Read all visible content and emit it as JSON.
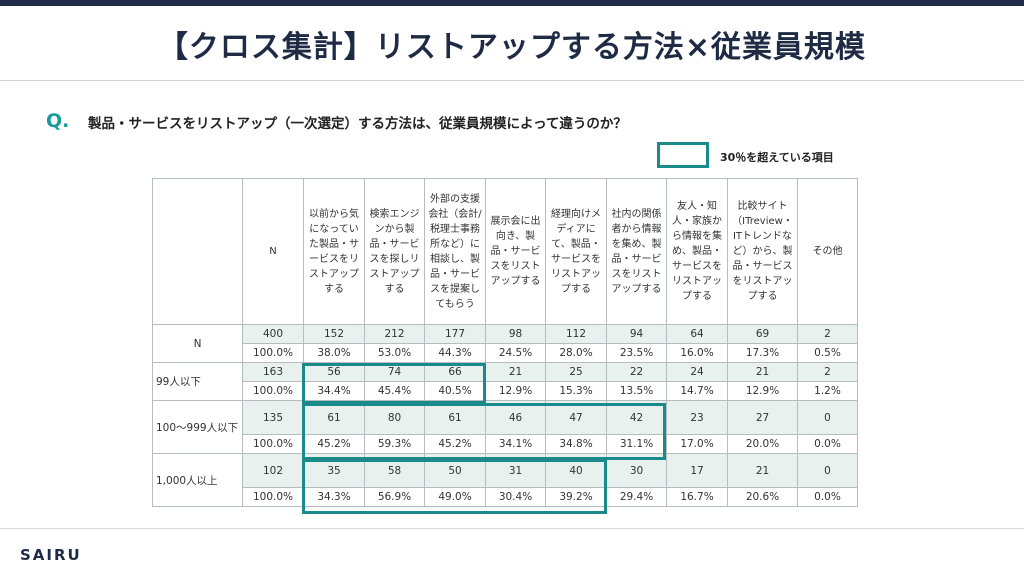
{
  "title": "【クロス集計】リストアップする方法×従業員規模",
  "question": {
    "mark": "Q.",
    "text": "製品・サービスをリストアップ（一次選定）する方法は、従業員規模によって違うのか？"
  },
  "legend": {
    "label": "30％を超えている項目",
    "color": "#1a8a8a"
  },
  "table": {
    "headers": [
      "",
      "N",
      "以前から気になっていた製品・サービスをリストアップする",
      "検索エンジンから製品・サービスを探しリストアップする",
      "外部の支援会社（会計/税理士事務所など）に相談し、製品・サービスを提案してもらう",
      "展示会に出向き、製品・サービスをリストアップする",
      "経理向けメディアにて、製品・サービスをリストアップする",
      "社内の関係者から情報を集め、製品・サービスをリストアップする",
      "友人・知人・家族から情報を集め、製品・サービスをリストアップする",
      "比較サイト（ITreview・ITトレンドなど）から、製品・サービスをリストアップする",
      "その他"
    ],
    "rows": [
      {
        "label": "N",
        "counts": [
          "400",
          "152",
          "212",
          "177",
          "98",
          "112",
          "94",
          "64",
          "69",
          "2"
        ],
        "percents": [
          "100.0%",
          "38.0%",
          "53.0%",
          "44.3%",
          "24.5%",
          "28.0%",
          "23.5%",
          "16.0%",
          "17.3%",
          "0.5%"
        ]
      },
      {
        "label": "99人以下",
        "counts": [
          "163",
          "56",
          "74",
          "66",
          "21",
          "25",
          "22",
          "24",
          "21",
          "2"
        ],
        "percents": [
          "100.0%",
          "34.4%",
          "45.4%",
          "40.5%",
          "12.9%",
          "15.3%",
          "13.5%",
          "14.7%",
          "12.9%",
          "1.2%"
        ]
      },
      {
        "label": "100～999人以下",
        "counts": [
          "135",
          "61",
          "80",
          "61",
          "46",
          "47",
          "42",
          "23",
          "27",
          "0"
        ],
        "percents": [
          "100.0%",
          "45.2%",
          "59.3%",
          "45.2%",
          "34.1%",
          "34.8%",
          "31.1%",
          "17.0%",
          "20.0%",
          "0.0%"
        ]
      },
      {
        "label": "1,000人以上",
        "counts": [
          "102",
          "35",
          "58",
          "50",
          "31",
          "40",
          "30",
          "17",
          "21",
          "0"
        ],
        "percents": [
          "100.0%",
          "34.3%",
          "56.9%",
          "49.0%",
          "30.4%",
          "39.2%",
          "29.4%",
          "16.7%",
          "20.6%",
          "0.0%"
        ]
      }
    ]
  },
  "logo": "SAIRU"
}
